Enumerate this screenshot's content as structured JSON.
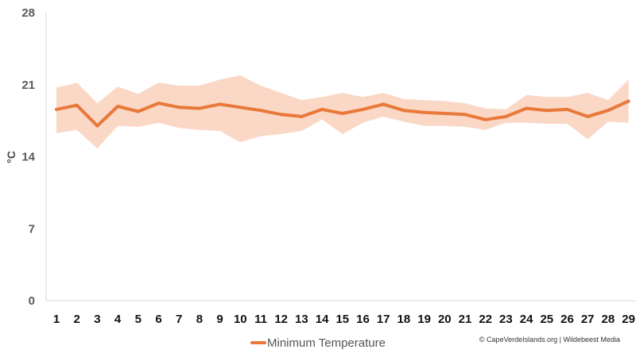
{
  "chart_data": {
    "type": "line",
    "x": [
      1,
      2,
      3,
      4,
      5,
      6,
      7,
      8,
      9,
      10,
      11,
      12,
      13,
      14,
      15,
      16,
      17,
      18,
      19,
      20,
      21,
      22,
      23,
      24,
      25,
      26,
      27,
      28,
      29
    ],
    "series": [
      {
        "name": "Minimum Temperature",
        "values": [
          18.6,
          19.0,
          17.0,
          18.9,
          18.4,
          19.2,
          18.8,
          18.7,
          19.1,
          18.8,
          18.5,
          18.1,
          17.9,
          18.6,
          18.2,
          18.6,
          19.1,
          18.5,
          18.3,
          18.2,
          18.1,
          17.6,
          17.9,
          18.7,
          18.5,
          18.6,
          17.9,
          18.5,
          19.4
        ],
        "range_low": [
          16.3,
          16.6,
          14.8,
          17.0,
          16.9,
          17.3,
          16.8,
          16.6,
          16.5,
          15.4,
          16.0,
          16.2,
          16.5,
          17.6,
          16.2,
          17.3,
          17.9,
          17.4,
          17.0,
          17.0,
          16.9,
          16.6,
          17.3,
          17.3,
          17.2,
          17.2,
          15.7,
          17.4,
          17.3
        ],
        "range_high": [
          20.7,
          21.2,
          19.2,
          20.8,
          20.1,
          21.2,
          20.9,
          20.9,
          21.5,
          21.9,
          20.9,
          20.2,
          19.5,
          19.8,
          20.2,
          19.8,
          20.2,
          19.6,
          19.5,
          19.4,
          19.2,
          18.7,
          18.6,
          20.0,
          19.8,
          19.8,
          20.2,
          19.5,
          21.5
        ],
        "color": "#e8793a",
        "band_color": "#fbd7c5"
      }
    ],
    "ylabel": "°C",
    "ylim": [
      0,
      28
    ],
    "yticks": [
      0,
      7,
      14,
      21,
      28
    ],
    "grid": false,
    "legend": "bottom"
  },
  "credit": "© CapeVerdeIslands.org | Wildebeest Media"
}
